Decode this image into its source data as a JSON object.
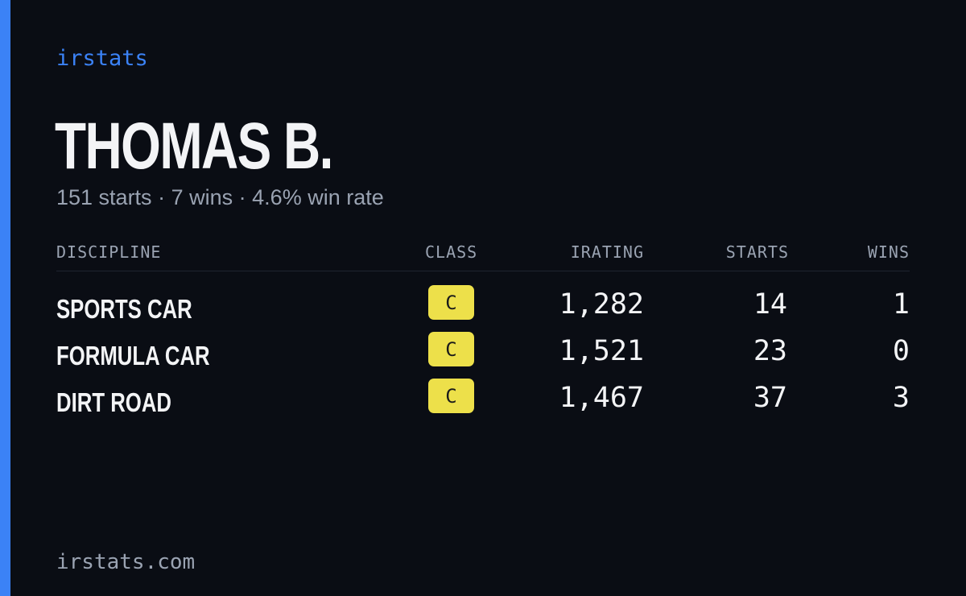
{
  "brand": "irstats",
  "driver": {
    "name": "THOMAS B.",
    "starts_text": "151 starts",
    "wins_text": "7 wins",
    "win_rate_text": "4.6% win rate",
    "separator": "·"
  },
  "table": {
    "headers": {
      "discipline": "DISCIPLINE",
      "class": "CLASS",
      "irating": "IRATING",
      "starts": "STARTS",
      "wins": "WINS"
    },
    "rows": [
      {
        "discipline": "SPORTS CAR",
        "class": "C",
        "irating": "1,282",
        "starts": "14",
        "wins": "1"
      },
      {
        "discipline": "FORMULA CAR",
        "class": "C",
        "irating": "1,521",
        "starts": "23",
        "wins": "0"
      },
      {
        "discipline": "DIRT ROAD",
        "class": "C",
        "irating": "1,467",
        "starts": "37",
        "wins": "3"
      }
    ]
  },
  "footer": "irstats.com",
  "colors": {
    "background": "#0a0d14",
    "accent": "#3b82f6",
    "class_c_badge": "#ede04a",
    "primary_text": "#f3f4f6",
    "muted_text": "#9aa3b2"
  }
}
